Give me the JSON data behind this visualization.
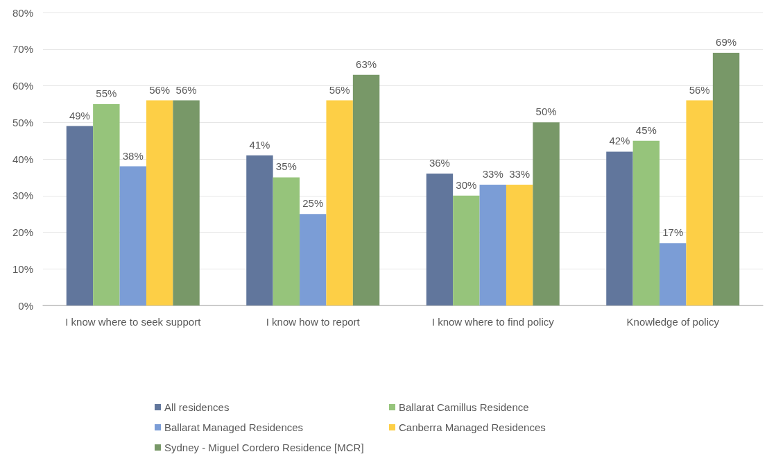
{
  "chart_data": {
    "type": "bar",
    "categories": [
      "I know where to seek support",
      "I know how to report",
      "I know where to find policy",
      "Knowledge of policy"
    ],
    "series": [
      {
        "name": "All residences",
        "color": "#61769c",
        "values": [
          49,
          41,
          36,
          42
        ],
        "value_labels": [
          "49%",
          "41%",
          "36%",
          "42%"
        ]
      },
      {
        "name": "Ballarat Camillus Residence",
        "color": "#96c47b",
        "values": [
          55,
          35,
          30,
          45
        ],
        "value_labels": [
          "55%",
          "35%",
          "30%",
          "45%"
        ]
      },
      {
        "name": "Ballarat Managed Residences",
        "color": "#7b9dd6",
        "values": [
          38,
          25,
          33,
          17
        ],
        "value_labels": [
          "38%",
          "25%",
          "33%",
          "17%"
        ]
      },
      {
        "name": "Canberra Managed Residences",
        "color": "#fdcf46",
        "values": [
          56,
          56,
          33,
          56
        ],
        "value_labels": [
          "56%",
          "56%",
          "33%",
          "56%"
        ]
      },
      {
        "name": "Sydney - Miguel Cordero Residence [MCR]",
        "color": "#789868",
        "values": [
          56,
          63,
          50,
          69
        ],
        "value_labels": [
          "56%",
          "63%",
          "50%",
          "69%"
        ]
      }
    ],
    "ylim": [
      0,
      80
    ],
    "yticks": [
      {
        "value": 0,
        "label": "0%"
      },
      {
        "value": 10,
        "label": "10%"
      },
      {
        "value": 20,
        "label": "20%"
      },
      {
        "value": 30,
        "label": "30%"
      },
      {
        "value": 40,
        "label": "40%"
      },
      {
        "value": 50,
        "label": "50%"
      },
      {
        "value": 60,
        "label": "60%"
      },
      {
        "value": 70,
        "label": "70%"
      },
      {
        "value": 80,
        "label": "80%"
      }
    ],
    "grid": "y",
    "legend": "bottom"
  }
}
